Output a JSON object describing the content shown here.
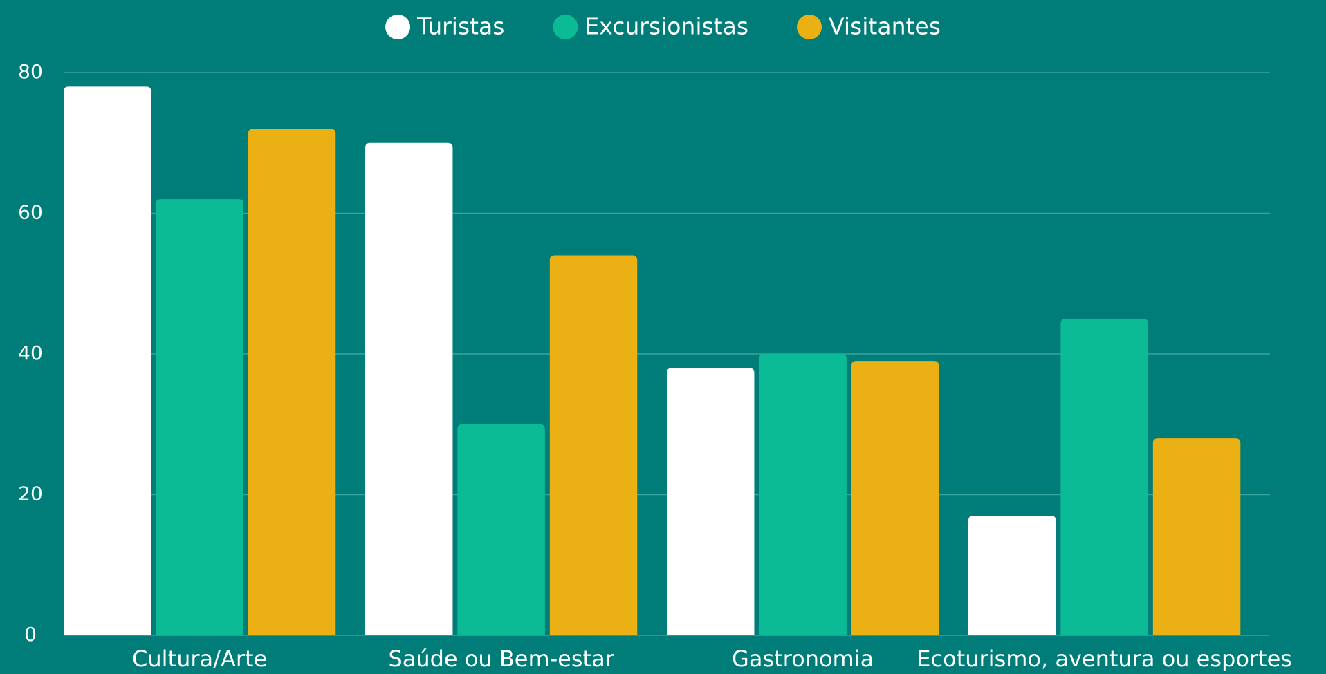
{
  "chart_data": {
    "type": "bar",
    "categories": [
      "Cultura/Arte",
      "Saúde ou Bem-estar",
      "Gastronomia",
      "Ecoturismo, aventura ou esportes"
    ],
    "series": [
      {
        "name": "Turistas",
        "color": "#ffffff",
        "values": [
          78,
          70,
          38,
          17
        ]
      },
      {
        "name": "Excursionistas",
        "color": "#0bbb96",
        "values": [
          62,
          30,
          40,
          45
        ]
      },
      {
        "name": "Visitantes",
        "color": "#ebb013",
        "values": [
          72,
          54,
          39,
          28
        ]
      }
    ],
    "ylim": [
      0,
      80
    ],
    "yticks": [
      0,
      20,
      40,
      60,
      80
    ],
    "grid": true,
    "legend": "top"
  }
}
